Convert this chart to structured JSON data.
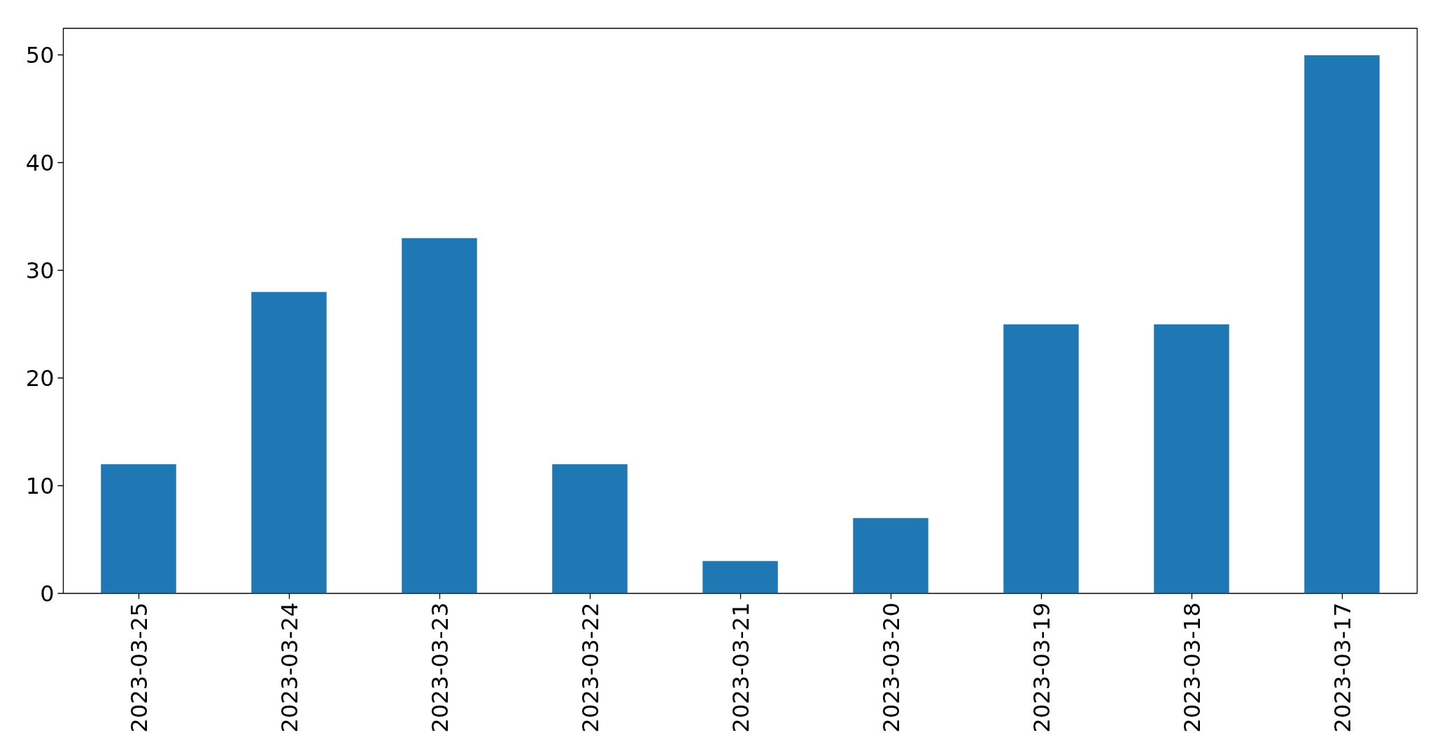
{
  "chart_data": {
    "type": "bar",
    "categories": [
      "2023-03-25",
      "2023-03-24",
      "2023-03-23",
      "2023-03-22",
      "2023-03-21",
      "2023-03-20",
      "2023-03-19",
      "2023-03-18",
      "2023-03-17"
    ],
    "values": [
      12,
      28,
      33,
      12,
      3,
      7,
      25,
      25,
      50
    ],
    "color": "#1f77b4",
    "ylim": [
      0,
      52.5
    ],
    "yticks": [
      0,
      10,
      20,
      30,
      40,
      50
    ]
  }
}
